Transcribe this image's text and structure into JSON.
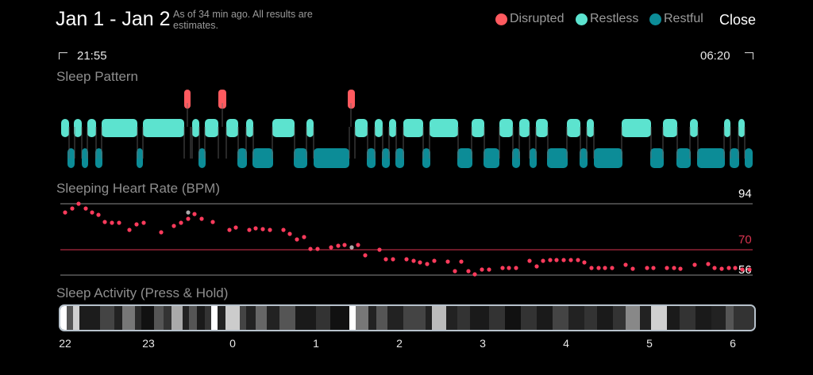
{
  "header": {
    "title": "Jan 1 - Jan 2",
    "subtitle": "As of 34 min ago. All results are estimates.",
    "close_label": "Close"
  },
  "legend": [
    {
      "label": "Disrupted",
      "color": "#ff5a5f"
    },
    {
      "label": "Restless",
      "color": "#5ce3cf"
    },
    {
      "label": "Restful",
      "color": "#0c8c97"
    }
  ],
  "time_range": {
    "start": "21:55",
    "end": "06:20"
  },
  "sleep_pattern": {
    "title": "Sleep Pattern"
  },
  "heart_rate": {
    "title": "Sleeping Heart Rate (BPM)",
    "max": "94",
    "avg": "70",
    "min": "56"
  },
  "activity": {
    "title": "Sleep Activity (Press & Hold)"
  },
  "hours": [
    "22",
    "23",
    "0",
    "1",
    "2",
    "3",
    "4",
    "5",
    "6"
  ]
}
